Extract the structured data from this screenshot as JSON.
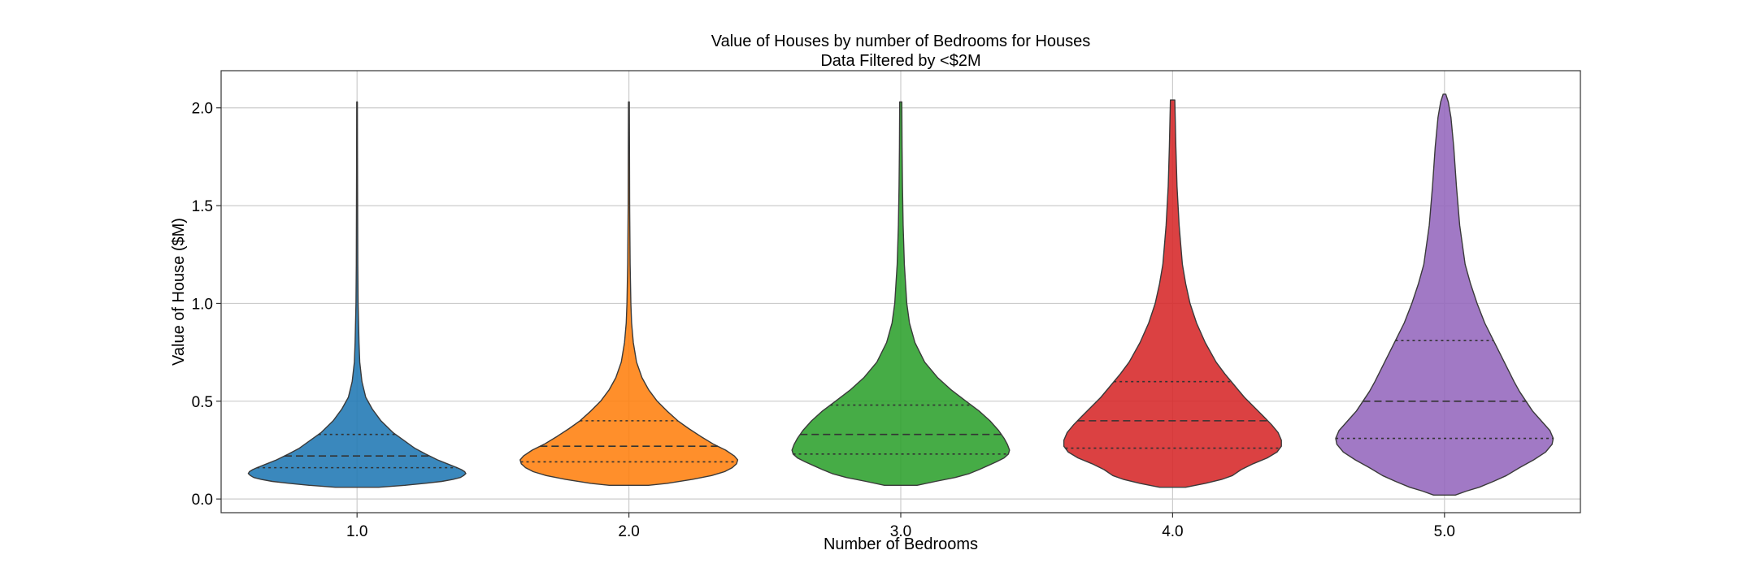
{
  "chart_data": {
    "type": "violin",
    "title": "Value of Houses by number of Bedrooms for Houses",
    "subtitle": "Data Filtered by <$2M",
    "xlabel": "Number of Bedrooms",
    "ylabel": "Value of House ($M)",
    "ylim": [
      -0.07,
      2.19
    ],
    "grid": true,
    "x_tick_labels": [
      "1.0",
      "2.0",
      "3.0",
      "4.0",
      "5.0"
    ],
    "y_ticks": [
      0.0,
      0.5,
      1.0,
      1.5,
      2.0
    ],
    "y_tick_labels": [
      "0.0",
      "0.5",
      "1.0",
      "1.5",
      "2.0"
    ],
    "colors": [
      "#1f77b4",
      "#ff7f0e",
      "#2ca02c",
      "#d62728",
      "#9467bd"
    ],
    "series": [
      {
        "category": "1.0",
        "min": 0.06,
        "max": 2.03,
        "quartiles": [
          0.16,
          0.22,
          0.33
        ],
        "density": [
          [
            0.06,
            0.2
          ],
          [
            0.07,
            0.44
          ],
          [
            0.08,
            0.62
          ],
          [
            0.09,
            0.78
          ],
          [
            0.1,
            0.88
          ],
          [
            0.11,
            0.95
          ],
          [
            0.12,
            0.98
          ],
          [
            0.13,
            1.0
          ],
          [
            0.14,
            0.99
          ],
          [
            0.15,
            0.96
          ],
          [
            0.16,
            0.92
          ],
          [
            0.18,
            0.83
          ],
          [
            0.2,
            0.74
          ],
          [
            0.23,
            0.63
          ],
          [
            0.26,
            0.53
          ],
          [
            0.3,
            0.43
          ],
          [
            0.34,
            0.33
          ],
          [
            0.4,
            0.22
          ],
          [
            0.46,
            0.14
          ],
          [
            0.52,
            0.08
          ],
          [
            0.6,
            0.045
          ],
          [
            0.7,
            0.025
          ],
          [
            0.8,
            0.018
          ],
          [
            1.0,
            0.01
          ],
          [
            1.2,
            0.007
          ],
          [
            1.5,
            0.005
          ],
          [
            1.8,
            0.004
          ],
          [
            2.03,
            0.003
          ]
        ]
      },
      {
        "category": "2.0",
        "min": 0.07,
        "max": 2.03,
        "quartiles": [
          0.19,
          0.27,
          0.4
        ],
        "density": [
          [
            0.07,
            0.18
          ],
          [
            0.08,
            0.35
          ],
          [
            0.1,
            0.58
          ],
          [
            0.12,
            0.76
          ],
          [
            0.14,
            0.88
          ],
          [
            0.16,
            0.95
          ],
          [
            0.18,
            0.99
          ],
          [
            0.2,
            1.0
          ],
          [
            0.22,
            0.97
          ],
          [
            0.25,
            0.89
          ],
          [
            0.28,
            0.78
          ],
          [
            0.32,
            0.66
          ],
          [
            0.36,
            0.55
          ],
          [
            0.4,
            0.45
          ],
          [
            0.45,
            0.35
          ],
          [
            0.5,
            0.26
          ],
          [
            0.56,
            0.18
          ],
          [
            0.62,
            0.12
          ],
          [
            0.7,
            0.07
          ],
          [
            0.8,
            0.04
          ],
          [
            0.9,
            0.025
          ],
          [
            1.0,
            0.018
          ],
          [
            1.2,
            0.011
          ],
          [
            1.5,
            0.007
          ],
          [
            1.8,
            0.005
          ],
          [
            2.03,
            0.004
          ]
        ]
      },
      {
        "category": "3.0",
        "min": 0.07,
        "max": 2.03,
        "quartiles": [
          0.23,
          0.33,
          0.48
        ],
        "density": [
          [
            0.07,
            0.15
          ],
          [
            0.09,
            0.32
          ],
          [
            0.11,
            0.5
          ],
          [
            0.13,
            0.63
          ],
          [
            0.15,
            0.72
          ],
          [
            0.17,
            0.8
          ],
          [
            0.19,
            0.88
          ],
          [
            0.21,
            0.95
          ],
          [
            0.23,
            0.99
          ],
          [
            0.25,
            1.0
          ],
          [
            0.28,
            0.98
          ],
          [
            0.31,
            0.95
          ],
          [
            0.35,
            0.9
          ],
          [
            0.4,
            0.82
          ],
          [
            0.45,
            0.72
          ],
          [
            0.5,
            0.6
          ],
          [
            0.56,
            0.46
          ],
          [
            0.62,
            0.34
          ],
          [
            0.7,
            0.22
          ],
          [
            0.8,
            0.13
          ],
          [
            0.9,
            0.08
          ],
          [
            1.0,
            0.055
          ],
          [
            1.2,
            0.033
          ],
          [
            1.4,
            0.022
          ],
          [
            1.6,
            0.016
          ],
          [
            1.8,
            0.012
          ],
          [
            2.03,
            0.01
          ]
        ]
      },
      {
        "category": "4.0",
        "min": 0.06,
        "max": 2.04,
        "quartiles": [
          0.26,
          0.4,
          0.6
        ],
        "density": [
          [
            0.06,
            0.12
          ],
          [
            0.08,
            0.3
          ],
          [
            0.1,
            0.45
          ],
          [
            0.12,
            0.55
          ],
          [
            0.15,
            0.63
          ],
          [
            0.18,
            0.74
          ],
          [
            0.21,
            0.87
          ],
          [
            0.24,
            0.96
          ],
          [
            0.27,
            1.0
          ],
          [
            0.3,
            1.0
          ],
          [
            0.34,
            0.97
          ],
          [
            0.38,
            0.91
          ],
          [
            0.42,
            0.84
          ],
          [
            0.47,
            0.75
          ],
          [
            0.52,
            0.66
          ],
          [
            0.58,
            0.57
          ],
          [
            0.64,
            0.48
          ],
          [
            0.7,
            0.4
          ],
          [
            0.8,
            0.3
          ],
          [
            0.9,
            0.22
          ],
          [
            1.0,
            0.16
          ],
          [
            1.1,
            0.12
          ],
          [
            1.2,
            0.09
          ],
          [
            1.4,
            0.06
          ],
          [
            1.6,
            0.04
          ],
          [
            1.8,
            0.03
          ],
          [
            2.04,
            0.02
          ]
        ]
      },
      {
        "category": "5.0",
        "min": 0.02,
        "max": 2.07,
        "quartiles": [
          0.31,
          0.5,
          0.81
        ],
        "density": [
          [
            0.02,
            0.1
          ],
          [
            0.04,
            0.2
          ],
          [
            0.06,
            0.32
          ],
          [
            0.09,
            0.45
          ],
          [
            0.12,
            0.57
          ],
          [
            0.16,
            0.69
          ],
          [
            0.2,
            0.82
          ],
          [
            0.24,
            0.93
          ],
          [
            0.28,
            0.99
          ],
          [
            0.31,
            1.0
          ],
          [
            0.35,
            0.97
          ],
          [
            0.4,
            0.89
          ],
          [
            0.45,
            0.81
          ],
          [
            0.5,
            0.75
          ],
          [
            0.55,
            0.69
          ],
          [
            0.6,
            0.64
          ],
          [
            0.7,
            0.55
          ],
          [
            0.8,
            0.46
          ],
          [
            0.9,
            0.37
          ],
          [
            1.0,
            0.3
          ],
          [
            1.1,
            0.24
          ],
          [
            1.2,
            0.19
          ],
          [
            1.4,
            0.14
          ],
          [
            1.6,
            0.11
          ],
          [
            1.8,
            0.085
          ],
          [
            1.95,
            0.06
          ],
          [
            2.03,
            0.035
          ],
          [
            2.07,
            0.012
          ]
        ]
      }
    ]
  }
}
